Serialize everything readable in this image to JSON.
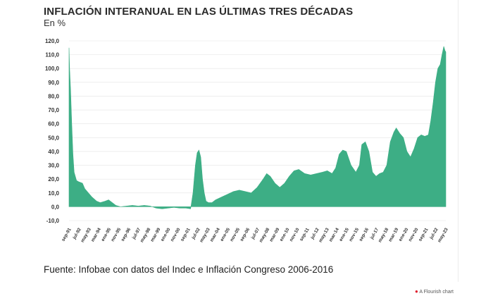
{
  "title": "INFLACIÓN INTERANUAL EN LAS ÚLTIMAS TRES DÉCADAS",
  "subtitle": "En %",
  "source": "Fuente: Infobae con datos del Indec e Inflación Congreso 2006-2016",
  "credit": "A Flourish chart",
  "colors": {
    "area": "#3dae85",
    "grid": "#e3e3e3",
    "zero": "#c8c8c8"
  },
  "chart_data": {
    "type": "area",
    "ylim": [
      -10,
      120
    ],
    "yticks": [
      -10,
      0,
      10,
      20,
      30,
      40,
      50,
      60,
      70,
      80,
      90,
      100,
      110,
      120
    ],
    "ytick_labels": [
      "-10,0",
      "0,0",
      "10,0",
      "20,0",
      "30,0",
      "40,0",
      "50,0",
      "60,0",
      "70,0",
      "80,0",
      "90,0",
      "100,0",
      "110,0",
      "120,0"
    ],
    "xlim": [
      1991.67,
      2023.37
    ],
    "xtick_labels": [
      "sep-91",
      "jul-92",
      "may-93",
      "mar-94",
      "ene-95",
      "nov-95",
      "sep-96",
      "jul-97",
      "may-98",
      "mar-99",
      "ene-00",
      "nov-00",
      "sep-01",
      "jul-02",
      "may-03",
      "mar-04",
      "ene-05",
      "nov-05",
      "sep-06",
      "jul-07",
      "may-08",
      "mar-09",
      "ene-10",
      "nov-10",
      "sep-11",
      "jul-12",
      "may-13",
      "mar-14",
      "ene-15",
      "nov-15",
      "sep-16",
      "jul-17",
      "may-18",
      "mar-19",
      "ene-20",
      "nov-20",
      "sep-21",
      "jul-22",
      "may-23"
    ],
    "x": [
      1991.67,
      1991.72,
      1991.8,
      1991.9,
      1992.0,
      1992.1,
      1992.3,
      1992.5,
      1992.8,
      1993.0,
      1993.3,
      1993.6,
      1994.0,
      1994.3,
      1994.7,
      1995.0,
      1995.3,
      1995.6,
      1996.0,
      1996.5,
      1997.0,
      1997.5,
      1998.0,
      1998.5,
      1999.0,
      1999.5,
      2000.0,
      2000.5,
      2001.0,
      2001.5,
      2001.9,
      2002.1,
      2002.3,
      2002.45,
      2002.6,
      2002.75,
      2002.9,
      2003.05,
      2003.2,
      2003.4,
      2003.7,
      2004.0,
      2004.5,
      2005.0,
      2005.5,
      2006.0,
      2006.5,
      2007.0,
      2007.5,
      2008.0,
      2008.3,
      2008.6,
      2009.0,
      2009.4,
      2009.8,
      2010.2,
      2010.6,
      2011.0,
      2011.5,
      2012.0,
      2012.5,
      2013.0,
      2013.4,
      2013.8,
      2014.1,
      2014.4,
      2014.7,
      2015.0,
      2015.4,
      2015.8,
      2016.1,
      2016.3,
      2016.6,
      2016.9,
      2017.2,
      2017.5,
      2017.8,
      2018.1,
      2018.4,
      2018.7,
      2019.0,
      2019.2,
      2019.5,
      2019.8,
      2020.1,
      2020.4,
      2020.7,
      2021.0,
      2021.3,
      2021.6,
      2021.9,
      2022.1,
      2022.3,
      2022.5,
      2022.7,
      2022.9,
      2023.05,
      2023.2,
      2023.3,
      2023.37
    ],
    "y": [
      115,
      100,
      85,
      60,
      38,
      25,
      19,
      18,
      17,
      13,
      10,
      7,
      4,
      3,
      4,
      5,
      3,
      1,
      0,
      0.5,
      1,
      0.5,
      1,
      0.5,
      -1,
      -1.5,
      -1,
      -0.5,
      -1,
      -1,
      -1.5,
      10,
      30,
      39,
      41,
      36,
      20,
      10,
      4,
      3,
      3,
      5,
      7,
      9,
      11,
      12,
      11,
      10,
      14,
      20,
      24,
      22,
      17,
      14,
      17,
      22,
      26,
      27,
      24,
      23,
      24,
      25,
      26,
      24,
      28,
      38,
      41,
      40,
      30,
      25,
      30,
      45,
      47,
      40,
      25,
      22,
      24,
      25,
      30,
      47,
      54,
      57,
      53,
      50,
      40,
      36,
      42,
      50,
      52,
      51,
      52,
      62,
      75,
      90,
      100,
      103,
      110,
      116,
      113,
      112
    ]
  }
}
